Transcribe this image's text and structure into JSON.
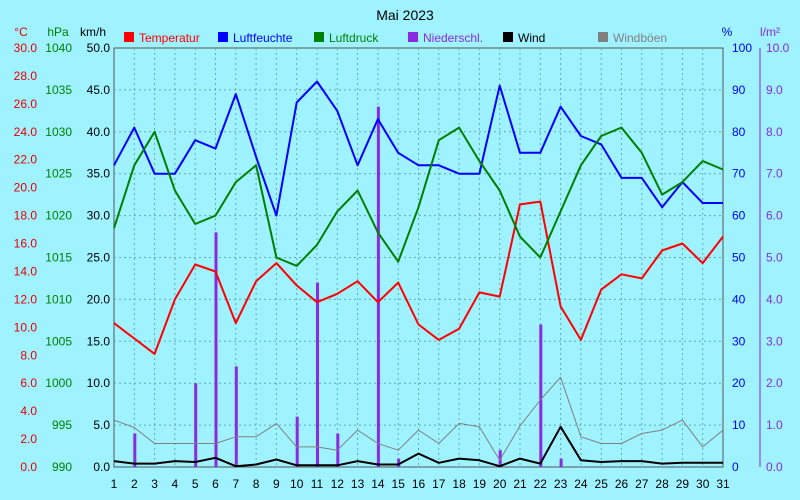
{
  "chart_data": {
    "type": "line",
    "title": "Mai 2023",
    "x": [
      1,
      2,
      3,
      4,
      5,
      6,
      7,
      8,
      9,
      10,
      11,
      12,
      13,
      14,
      15,
      16,
      17,
      18,
      19,
      20,
      21,
      22,
      23,
      24,
      25,
      26,
      27,
      28,
      29,
      30,
      31
    ],
    "axes": {
      "temp": {
        "unit": "°C",
        "min": 0,
        "max": 30,
        "step": 2,
        "decimals": 1,
        "color": "#e60000"
      },
      "press": {
        "unit": "hPa",
        "min": 990,
        "max": 1040,
        "step": 5,
        "decimals": 0,
        "color": "#008000"
      },
      "wind": {
        "unit": "km/h",
        "min": 0,
        "max": 50,
        "step": 5,
        "decimals": 1,
        "color": "#000000"
      },
      "hum": {
        "unit": "%",
        "min": 0,
        "max": 100,
        "step": 10,
        "decimals": 0,
        "color": "#0000ff"
      },
      "rain": {
        "unit": "l/m²",
        "min": 0,
        "max": 10,
        "step": 1,
        "decimals": 1,
        "color": "#8a2be2"
      }
    },
    "legend": [
      {
        "label": "Temperatur",
        "color": "#ff0000"
      },
      {
        "label": "Luftfeuchte",
        "color": "#0000ff"
      },
      {
        "label": "Luftdruck",
        "color": "#008000"
      },
      {
        "label": "Niederschl.",
        "color": "#8a2be2"
      },
      {
        "label": "Wind",
        "color": "#000000"
      },
      {
        "label": "Windböen",
        "color": "#808080"
      }
    ],
    "series": [
      {
        "name": "Temperatur",
        "axis": "temp",
        "color": "#ff0000",
        "width": 2,
        "values": [
          10.3,
          9.2,
          8.1,
          12.0,
          14.5,
          14.0,
          10.3,
          13.3,
          14.6,
          13.0,
          11.8,
          12.4,
          13.3,
          11.8,
          13.2,
          10.2,
          9.1,
          9.9,
          12.5,
          12.2,
          18.8,
          19.0,
          11.5,
          9.1,
          12.7,
          13.8,
          13.5,
          15.5,
          16.0,
          14.6,
          16.5
        ]
      },
      {
        "name": "Luftfeuchte",
        "axis": "hum",
        "color": "#0000ff",
        "width": 2,
        "values": [
          72,
          81,
          70,
          70,
          78,
          76,
          89,
          74,
          60,
          87,
          92,
          85,
          72,
          83,
          75,
          72,
          72,
          70,
          70,
          91,
          75,
          75,
          86,
          79,
          77,
          69,
          69,
          62,
          68,
          63,
          63
        ]
      },
      {
        "name": "Luftdruck",
        "axis": "press",
        "color": "#008000",
        "width": 2,
        "values": [
          1018.5,
          1026.0,
          1030.0,
          1023.0,
          1019.0,
          1020.0,
          1024.0,
          1026.0,
          1015.0,
          1014.0,
          1016.5,
          1020.5,
          1023.0,
          1018.0,
          1014.5,
          1021.0,
          1029.0,
          1030.5,
          1026.5,
          1023.0,
          1017.5,
          1015.0,
          1020.5,
          1026.0,
          1029.5,
          1030.5,
          1027.5,
          1022.5,
          1024.0,
          1026.5,
          1025.5
        ]
      },
      {
        "name": "Wind",
        "axis": "wind",
        "color": "#000000",
        "width": 2,
        "values": [
          0.7,
          0.4,
          0.4,
          0.7,
          0.6,
          1.1,
          0.1,
          0.3,
          0.9,
          0.2,
          0.2,
          0.2,
          0.7,
          0.3,
          0.3,
          1.6,
          0.5,
          1.0,
          0.8,
          0.1,
          1.0,
          0.4,
          4.8,
          0.8,
          0.6,
          0.7,
          0.7,
          0.4,
          0.5,
          0.5,
          0.5
        ]
      },
      {
        "name": "Windböen",
        "axis": "wind",
        "color": "#808080",
        "width": 1,
        "values": [
          5.6,
          4.7,
          2.8,
          2.8,
          2.8,
          2.8,
          3.6,
          3.6,
          5.2,
          2.4,
          2.4,
          2.0,
          4.4,
          2.8,
          2.0,
          4.4,
          2.8,
          5.2,
          4.8,
          0.8,
          4.9,
          8.0,
          10.7,
          3.6,
          2.8,
          2.8,
          4.0,
          4.4,
          5.6,
          2.4,
          4.4
        ]
      }
    ],
    "bars": {
      "name": "Niederschl.",
      "axis": "rain",
      "color": "#8a2be2",
      "values": [
        0,
        0.8,
        0,
        0,
        2.0,
        5.6,
        2.4,
        0,
        0,
        1.2,
        4.4,
        0.8,
        0,
        8.6,
        0.2,
        0,
        0,
        0,
        0,
        0.4,
        0,
        3.4,
        0.2,
        0,
        0,
        0,
        0,
        0,
        0,
        0,
        0
      ]
    },
    "grid": true
  }
}
